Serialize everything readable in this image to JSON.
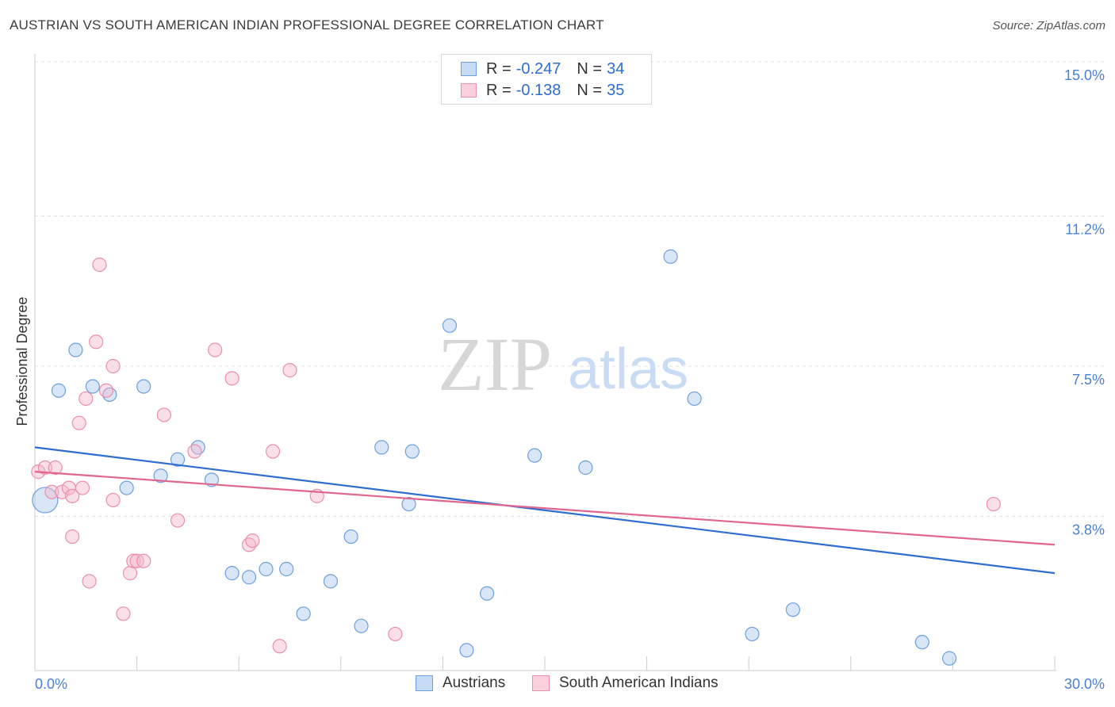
{
  "title": "AUSTRIAN VS SOUTH AMERICAN INDIAN PROFESSIONAL DEGREE CORRELATION CHART",
  "source": "Source: ZipAtlas.com",
  "watermark": {
    "zip": "ZIP",
    "atlas": "atlas"
  },
  "legend_top": [
    {
      "r_label": "R =",
      "r_value": "-0.247",
      "n_label": "N =",
      "n_value": "34",
      "color": "#a9c8f0"
    },
    {
      "r_label": "R =",
      "r_value": "-0.138",
      "n_label": "N =",
      "n_value": "35",
      "color": "#f5b8cb"
    }
  ],
  "legend_bottom": [
    {
      "label": "Austrians",
      "color": "#a9c8f0"
    },
    {
      "label": "South American Indians",
      "color": "#f5b8cb"
    }
  ],
  "chart_data": {
    "type": "scatter",
    "xlabel": "",
    "ylabel": "Professional Degree",
    "xlim": [
      0,
      30
    ],
    "ylim": [
      0,
      15
    ],
    "x_tick_labels": [
      "0.0%",
      "30.0%"
    ],
    "y_tick_labels": [
      "3.8%",
      "7.5%",
      "11.2%",
      "15.0%"
    ],
    "y_tick_values": [
      3.8,
      7.5,
      11.2,
      15.0
    ],
    "grid": "horizontal dashed",
    "legend_position": "top-center",
    "series": [
      {
        "name": "Austrians",
        "color": "#6e9fdf",
        "fill": "#a9c8f0",
        "trend": {
          "x": [
            0,
            30
          ],
          "y": [
            5.5,
            2.4
          ]
        },
        "points": [
          {
            "x": 0.3,
            "y": 4.2,
            "big": true
          },
          {
            "x": 0.7,
            "y": 6.9
          },
          {
            "x": 1.2,
            "y": 7.9
          },
          {
            "x": 1.7,
            "y": 7.0
          },
          {
            "x": 2.2,
            "y": 6.8
          },
          {
            "x": 2.7,
            "y": 4.5
          },
          {
            "x": 3.2,
            "y": 7.0
          },
          {
            "x": 3.7,
            "y": 4.8
          },
          {
            "x": 4.2,
            "y": 5.2
          },
          {
            "x": 4.8,
            "y": 5.5
          },
          {
            "x": 5.2,
            "y": 4.7
          },
          {
            "x": 5.8,
            "y": 2.4
          },
          {
            "x": 6.3,
            "y": 2.3
          },
          {
            "x": 6.8,
            "y": 2.5
          },
          {
            "x": 7.4,
            "y": 2.5
          },
          {
            "x": 7.9,
            "y": 1.4
          },
          {
            "x": 8.7,
            "y": 2.2
          },
          {
            "x": 9.3,
            "y": 3.3
          },
          {
            "x": 9.6,
            "y": 1.1
          },
          {
            "x": 10.2,
            "y": 5.5
          },
          {
            "x": 11.0,
            "y": 4.1
          },
          {
            "x": 11.1,
            "y": 5.4
          },
          {
            "x": 12.2,
            "y": 8.5
          },
          {
            "x": 12.7,
            "y": 0.5
          },
          {
            "x": 13.3,
            "y": 1.9
          },
          {
            "x": 13.5,
            "y": 14.2
          },
          {
            "x": 14.7,
            "y": 5.3
          },
          {
            "x": 16.2,
            "y": 5.0
          },
          {
            "x": 18.7,
            "y": 10.2
          },
          {
            "x": 19.4,
            "y": 6.7
          },
          {
            "x": 21.1,
            "y": 0.9
          },
          {
            "x": 22.3,
            "y": 1.5
          },
          {
            "x": 26.1,
            "y": 0.7
          },
          {
            "x": 26.9,
            "y": 0.3
          }
        ]
      },
      {
        "name": "South American Indians",
        "color": "#ea8fac",
        "fill": "#f5b8cb",
        "trend": {
          "x": [
            0,
            30
          ],
          "y": [
            4.9,
            3.1
          ]
        },
        "points": [
          {
            "x": 0.1,
            "y": 4.9
          },
          {
            "x": 0.3,
            "y": 5.0
          },
          {
            "x": 0.5,
            "y": 4.4
          },
          {
            "x": 0.6,
            "y": 5.0
          },
          {
            "x": 0.8,
            "y": 4.4
          },
          {
            "x": 1.0,
            "y": 4.5
          },
          {
            "x": 1.1,
            "y": 4.3
          },
          {
            "x": 1.1,
            "y": 3.3
          },
          {
            "x": 1.3,
            "y": 6.1
          },
          {
            "x": 1.4,
            "y": 4.5
          },
          {
            "x": 1.5,
            "y": 6.7
          },
          {
            "x": 1.6,
            "y": 2.2
          },
          {
            "x": 1.8,
            "y": 8.1
          },
          {
            "x": 1.9,
            "y": 10.0
          },
          {
            "x": 2.1,
            "y": 6.9
          },
          {
            "x": 2.3,
            "y": 4.2
          },
          {
            "x": 2.3,
            "y": 7.5
          },
          {
            "x": 2.6,
            "y": 1.4
          },
          {
            "x": 2.8,
            "y": 2.4
          },
          {
            "x": 2.9,
            "y": 2.7
          },
          {
            "x": 3.0,
            "y": 2.7
          },
          {
            "x": 3.2,
            "y": 2.7
          },
          {
            "x": 3.8,
            "y": 6.3
          },
          {
            "x": 4.2,
            "y": 3.7
          },
          {
            "x": 4.7,
            "y": 5.4
          },
          {
            "x": 5.3,
            "y": 7.9
          },
          {
            "x": 5.8,
            "y": 7.2
          },
          {
            "x": 6.3,
            "y": 3.1
          },
          {
            "x": 6.4,
            "y": 3.2
          },
          {
            "x": 7.0,
            "y": 5.4
          },
          {
            "x": 7.2,
            "y": 0.6
          },
          {
            "x": 7.5,
            "y": 7.4
          },
          {
            "x": 8.3,
            "y": 4.3
          },
          {
            "x": 10.6,
            "y": 0.9
          },
          {
            "x": 28.2,
            "y": 4.1
          }
        ]
      }
    ]
  }
}
